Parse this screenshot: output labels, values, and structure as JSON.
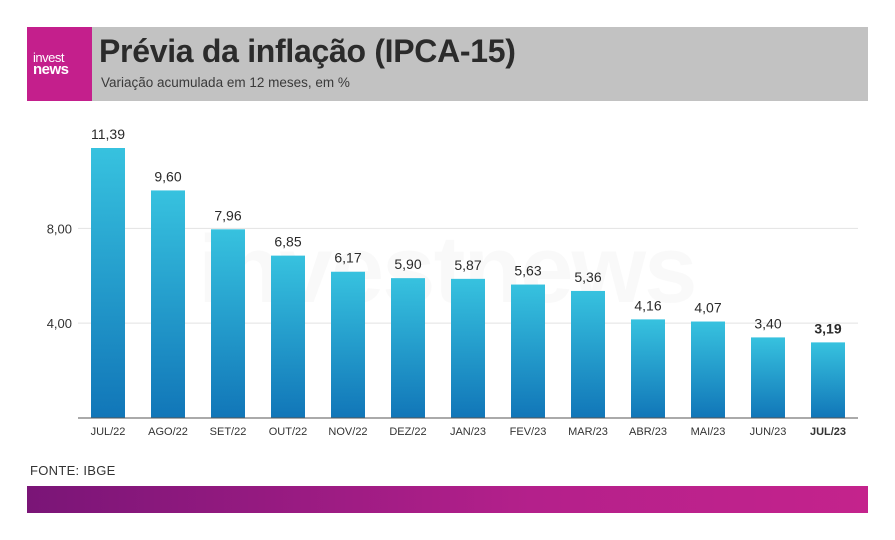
{
  "header": {
    "logo_top": "invest",
    "logo_bottom": "news",
    "title": "Prévia da inflação (IPCA-15)",
    "subtitle": "Variação acumulada em 12 meses, em %"
  },
  "watermark": "investnews",
  "source": "FONTE: IBGE",
  "colors": {
    "brand": "#c41f8c",
    "bar_top": "#37c2df",
    "bar_bottom": "#1176b8",
    "footer_start": "#7a1577",
    "footer_end": "#c4238c"
  },
  "chart_data": {
    "type": "bar",
    "title": "Prévia da inflação (IPCA-15)",
    "categories": [
      "JUL/22",
      "AGO/22",
      "SET/22",
      "OUT/22",
      "NOV/22",
      "DEZ/22",
      "JAN/23",
      "FEV/23",
      "MAR/23",
      "ABR/23",
      "MAI/23",
      "JUN/23",
      "JUL/23"
    ],
    "values": [
      11.39,
      9.6,
      7.96,
      6.85,
      6.17,
      5.9,
      5.87,
      5.63,
      5.36,
      4.16,
      4.07,
      3.4,
      3.19
    ],
    "value_labels": [
      "11,39",
      "9,60",
      "7,96",
      "6,85",
      "6,17",
      "5,90",
      "5,87",
      "5,63",
      "5,36",
      "4,16",
      "4,07",
      "3,40",
      "3,19"
    ],
    "highlight_index": 12,
    "yticks": [
      4,
      8
    ],
    "ytick_labels": [
      "4,00",
      "8,00"
    ],
    "ylim": [
      0,
      11.39
    ],
    "grid": true
  }
}
